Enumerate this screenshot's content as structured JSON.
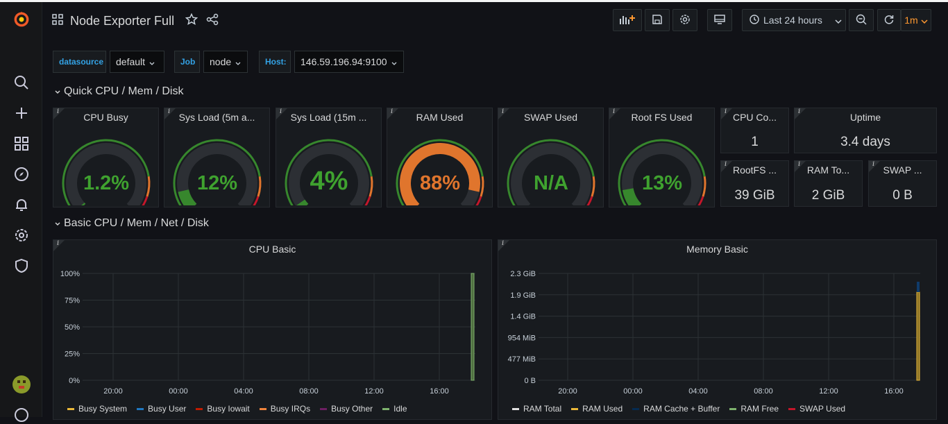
{
  "header": {
    "title": "Node Exporter Full",
    "time_range": "Last 24 hours",
    "refresh": "1m"
  },
  "variables": [
    {
      "label": "datasource",
      "value": "default"
    },
    {
      "label": "Job",
      "value": "node"
    },
    {
      "label": "Host:",
      "value": "146.59.196.94:9100"
    }
  ],
  "rows": {
    "quick": "Quick CPU / Mem / Disk",
    "basic": "Basic CPU / Mem / Net / Disk"
  },
  "gauges": [
    {
      "title": "CPU Busy",
      "value": "1.2%",
      "fraction": 0.012,
      "color": "#37872d"
    },
    {
      "title": "Sys Load (5m a...",
      "value": "12%",
      "fraction": 0.12,
      "color": "#37872d"
    },
    {
      "title": "Sys Load (15m ...",
      "value": "4%",
      "fraction": 0.04,
      "color": "#37872d"
    },
    {
      "title": "RAM Used",
      "value": "88%",
      "fraction": 0.88,
      "color": "#e0752d"
    },
    {
      "title": "SWAP Used",
      "value": "N/A",
      "fraction": 0,
      "color": "#37872d"
    },
    {
      "title": "Root FS Used",
      "value": "13%",
      "fraction": 0.13,
      "color": "#37872d"
    }
  ],
  "stats": [
    {
      "title": "CPU Co...",
      "value": "1"
    },
    {
      "title": "Uptime",
      "value": "3.4 days"
    },
    {
      "title": "RootFS ...",
      "value": "39 GiB"
    },
    {
      "title": "RAM To...",
      "value": "2 GiB"
    },
    {
      "title": "SWAP ...",
      "value": "0 B"
    }
  ],
  "cpu_basic": {
    "title": "CPU Basic",
    "y_ticks": [
      "100%",
      "75%",
      "50%",
      "25%",
      "0%"
    ],
    "x_ticks": [
      "20:00",
      "00:00",
      "04:00",
      "08:00",
      "12:00",
      "16:00"
    ],
    "legend": [
      {
        "name": "Busy System",
        "color": "#eab839"
      },
      {
        "name": "Busy User",
        "color": "#1f78c1"
      },
      {
        "name": "Busy Iowait",
        "color": "#bf1b00"
      },
      {
        "name": "Busy IRQs",
        "color": "#ef843c"
      },
      {
        "name": "Busy Other",
        "color": "#6d1f62"
      },
      {
        "name": "Idle",
        "color": "#7eb26d"
      }
    ]
  },
  "memory_basic": {
    "title": "Memory Basic",
    "y_ticks": [
      "2.3 GiB",
      "1.9 GiB",
      "1.4 GiB",
      "954 MiB",
      "477 MiB",
      "0 B"
    ],
    "x_ticks": [
      "20:00",
      "00:00",
      "04:00",
      "08:00",
      "12:00",
      "16:00"
    ],
    "legend": [
      {
        "name": "RAM Total",
        "color": "#e0e0e0"
      },
      {
        "name": "RAM Used",
        "color": "#eab839"
      },
      {
        "name": "RAM Cache + Buffer",
        "color": "#052b51"
      },
      {
        "name": "RAM Free",
        "color": "#7eb26d"
      },
      {
        "name": "SWAP Used",
        "color": "#c4162a"
      }
    ]
  }
}
